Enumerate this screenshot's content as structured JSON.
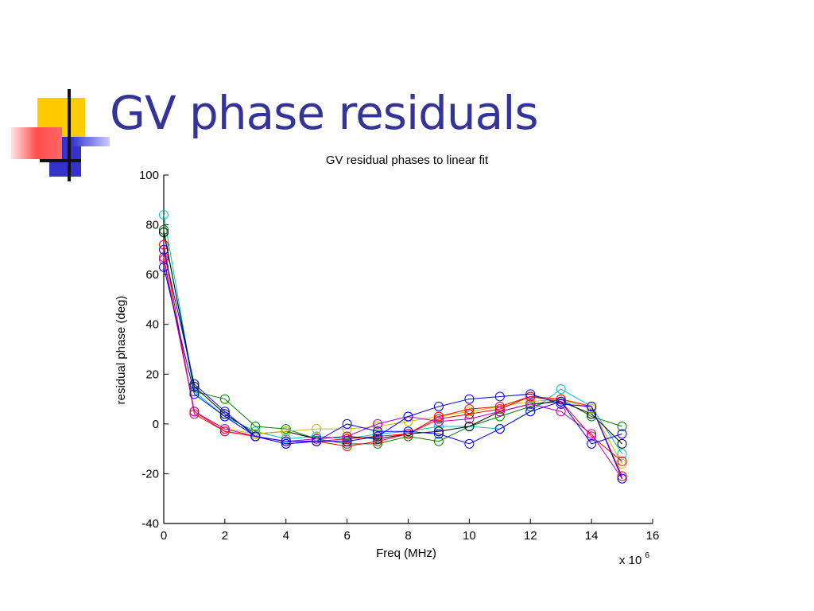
{
  "slide": {
    "title": "GV phase residuals"
  },
  "chart_data": {
    "type": "line",
    "title": "GV residual phases to linear fit",
    "xlabel": "Freq (MHz)",
    "ylabel": "residual phase (deg)",
    "x_multiplier_text": "x 10",
    "x_multiplier_exp": "6",
    "xlim": [
      0,
      16
    ],
    "ylim": [
      -40,
      100
    ],
    "xticks": [
      0,
      2,
      4,
      6,
      8,
      10,
      12,
      14,
      16
    ],
    "yticks": [
      -40,
      -20,
      0,
      20,
      40,
      60,
      80,
      100
    ],
    "grid": false,
    "marker": "circle",
    "x": [
      0,
      1,
      2,
      3,
      4,
      5,
      6,
      7,
      8,
      9,
      10,
      11,
      12,
      13,
      14,
      15
    ],
    "series": [
      {
        "color": "#00bfbf",
        "values": [
          84,
          13,
          3,
          -3,
          -6,
          -5,
          -6,
          -4,
          -3,
          -1,
          -1,
          -2,
          5,
          14,
          7,
          -12
        ]
      },
      {
        "color": "#008000",
        "values": [
          78,
          13,
          10,
          -1,
          -2,
          -6,
          -8,
          -8,
          -5,
          -7,
          -1,
          3,
          7,
          10,
          3,
          -1
        ]
      },
      {
        "color": "#000000",
        "values": [
          77,
          15,
          4,
          -4,
          -3,
          -6,
          -5,
          -6,
          -4,
          -3,
          -1,
          5,
          8,
          9,
          4,
          -8
        ]
      },
      {
        "color": "#bfbf00",
        "values": [
          70,
          5,
          -2,
          -4,
          -3,
          -2,
          -2,
          -1,
          1,
          3,
          5,
          7,
          9,
          10,
          6,
          -16
        ]
      },
      {
        "color": "#ff0000",
        "values": [
          72,
          4,
          -3,
          -5,
          -7,
          -7,
          -9,
          -7,
          -4,
          2,
          4,
          6,
          11,
          10,
          7,
          -21
        ]
      },
      {
        "color": "#ff0000",
        "values": [
          67,
          5,
          -3,
          -5,
          -8,
          -7,
          -6,
          -5,
          -4,
          3,
          6,
          7,
          11,
          9,
          -5,
          -15
        ]
      },
      {
        "color": "#bf00bf",
        "values": [
          66,
          5,
          -2,
          -5,
          -7,
          -6,
          -5,
          0,
          3,
          1,
          2,
          5,
          8,
          5,
          -4,
          -22
        ]
      },
      {
        "color": "#0000ff",
        "values": [
          63,
          12,
          3,
          -5,
          -7,
          -7,
          0,
          -3,
          -3,
          -4,
          -8,
          -2,
          5,
          9,
          -8,
          -4
        ]
      },
      {
        "color": "#0000ff",
        "values": [
          70,
          16,
          5,
          -5,
          -8,
          -7,
          -7,
          -5,
          3,
          7,
          10,
          11,
          12,
          8,
          7,
          -22
        ]
      }
    ]
  },
  "decor": {
    "colors": {
      "yellow": "#ffcc00",
      "blue": "#3333cc",
      "red_gradient_start": "#ff3333",
      "red_gradient_end": "#ffe0e0",
      "bar": "#111111"
    }
  }
}
